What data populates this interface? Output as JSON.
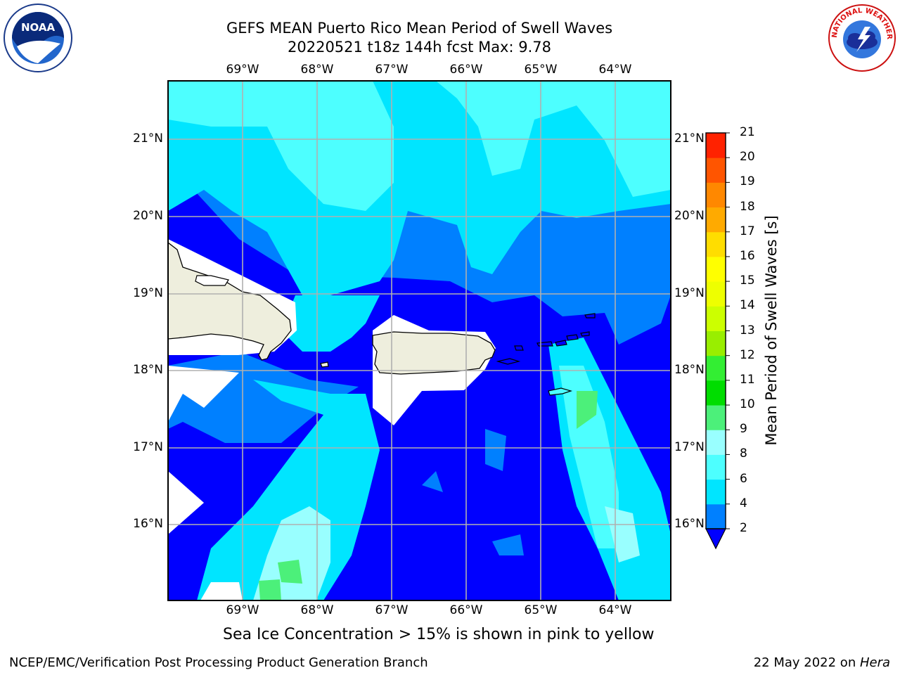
{
  "title": {
    "line1": "GEFS MEAN Puerto Rico Mean Period of Swell Waves",
    "line2": "20220521 t18z 144h fcst   Max: 9.78"
  },
  "map": {
    "lon_ticks": [
      "69°W",
      "68°W",
      "67°W",
      "66°W",
      "65°W",
      "64°W"
    ],
    "lat_ticks": [
      "21°N",
      "20°N",
      "19°N",
      "18°N",
      "17°N",
      "16°N"
    ],
    "colors": {
      "water_dark": "#0000ff",
      "water_mid": "#0080ff",
      "water_light": "#00e5ff",
      "water_cyan": "#4dffff",
      "water_pale": "#99ffff",
      "water_green": "#4cf07a",
      "land": "#eeeedd",
      "missing": "#ffffff",
      "grid": "#b0b0b0"
    }
  },
  "colorbar": {
    "label": "Mean Period of Swell Waves [s]",
    "levels": [
      "2",
      "4",
      "6",
      "8",
      "9",
      "10",
      "11",
      "12",
      "13",
      "14",
      "15",
      "16",
      "17",
      "18",
      "19",
      "20",
      "21"
    ],
    "colors": [
      "#0080ff",
      "#00e5ff",
      "#4dffff",
      "#99ffff",
      "#4cf07a",
      "#00dd00",
      "#33ee33",
      "#99ee00",
      "#ccff00",
      "#eeff00",
      "#ffff00",
      "#ffdd00",
      "#ffaa00",
      "#ff8800",
      "#ff5500",
      "#ff2200"
    ],
    "under_color": "#0000ff"
  },
  "note": "Sea Ice Concentration > 15% is shown in pink to yellow",
  "footer": {
    "left": "NCEP/EMC/Verification Post Processing Product Generation Branch",
    "date": "22 May 2022 on ",
    "system": "Hera"
  },
  "logos": {
    "noaa_text": "NOAA",
    "nws_text": "NATIONAL WEATHER SERVICE"
  }
}
